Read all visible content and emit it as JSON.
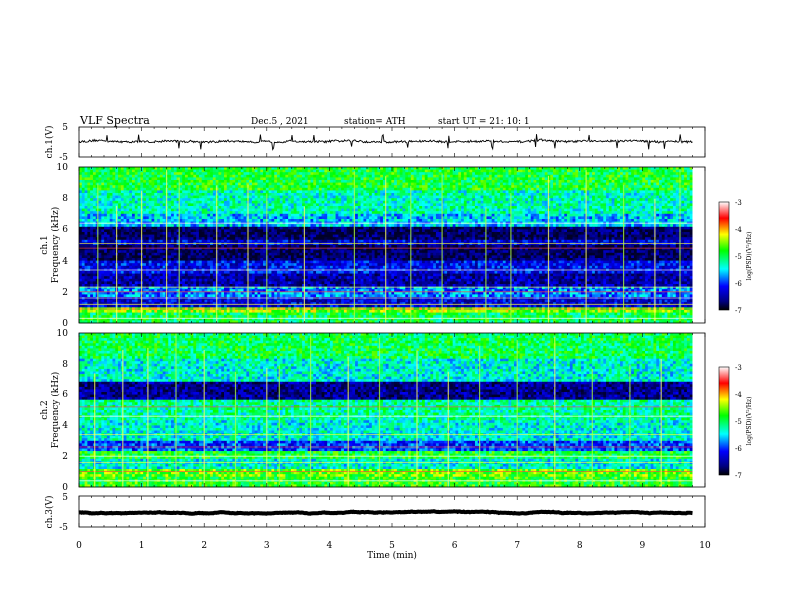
{
  "header": {
    "title": "VLF  Spectra",
    "date": "Dec.5  , 2021",
    "station": "station= ATH",
    "start": "start  UT  =    21: 10: 1"
  },
  "x_axis": {
    "label": "Time  (min)",
    "ticks": [
      "0",
      "1",
      "2",
      "3",
      "4",
      "5",
      "6",
      "7",
      "8",
      "9",
      "10"
    ],
    "range": [
      0,
      10
    ]
  },
  "colorbar": {
    "label": "log(PSD)(V²/Hz)",
    "ticks": [
      "-3",
      "-4",
      "-5",
      "-6",
      "-7"
    ],
    "range": [
      -7,
      -3
    ]
  },
  "chart_data": [
    {
      "type": "line",
      "name": "ch1_waveform",
      "ylabel": "ch.1(V)",
      "ytick_labels": [
        "5",
        "-5"
      ],
      "ylim": [
        -5,
        5
      ],
      "xlim": [
        0,
        9.8
      ],
      "baseline": 0.2,
      "noise": 0.35,
      "spike_times": [
        0.45,
        0.95,
        1.6,
        1.95,
        2.9,
        3.1,
        3.4,
        3.75,
        4.35,
        4.85,
        5.25,
        5.9,
        6.6,
        7.3,
        7.6,
        8.15,
        8.6,
        9.1,
        9.35,
        9.6
      ]
    },
    {
      "type": "heatmap",
      "name": "ch1_spectrogram",
      "ylabel": "Frequency  (kHz)",
      "channel": "ch.1",
      "ytick_labels": [
        "0",
        "2",
        "4",
        "6",
        "8",
        "10"
      ],
      "ylim": [
        0,
        10
      ],
      "xlim": [
        0,
        9.8
      ],
      "zlim": [
        -7,
        -3
      ],
      "bands": [
        {
          "f": [
            0.0,
            0.7
          ],
          "z": -5.0
        },
        {
          "f": [
            0.7,
            1.0
          ],
          "z": -4.5
        },
        {
          "f": [
            1.0,
            1.6
          ],
          "z": -6.3
        },
        {
          "f": [
            1.6,
            2.4
          ],
          "z": -5.8
        },
        {
          "f": [
            2.4,
            3.2
          ],
          "z": -6.5
        },
        {
          "f": [
            3.2,
            4.0
          ],
          "z": -6.2
        },
        {
          "f": [
            4.0,
            5.0
          ],
          "z": -6.8
        },
        {
          "f": [
            5.0,
            5.4
          ],
          "z": -6.3
        },
        {
          "f": [
            5.4,
            6.2
          ],
          "z": -6.8
        },
        {
          "f": [
            6.2,
            7.0
          ],
          "z": -5.6
        },
        {
          "f": [
            7.0,
            8.5
          ],
          "z": -5.3
        },
        {
          "f": [
            8.5,
            10.0
          ],
          "z": -4.9
        }
      ],
      "lines_khz": [
        0.3,
        0.9,
        1.2,
        1.6,
        2.0,
        2.3,
        3.4,
        4.8,
        5.1,
        6.4
      ],
      "burst_times": [
        0.3,
        0.6,
        1.0,
        1.4,
        1.6,
        2.2,
        2.7,
        3.0,
        3.6,
        4.4,
        4.9,
        5.3,
        5.8,
        6.5,
        6.9,
        7.5,
        8.1,
        8.7,
        9.2,
        9.6
      ]
    },
    {
      "type": "heatmap",
      "name": "ch2_spectrogram",
      "ylabel": "Frequency  (kHz)",
      "channel": "ch.2",
      "ytick_labels": [
        "0",
        "2",
        "4",
        "6",
        "8",
        "10"
      ],
      "ylim": [
        0,
        10
      ],
      "xlim": [
        0,
        9.8
      ],
      "zlim": [
        -7,
        -3
      ],
      "bands": [
        {
          "f": [
            0.0,
            0.6
          ],
          "z": -4.8
        },
        {
          "f": [
            0.6,
            1.2
          ],
          "z": -4.6
        },
        {
          "f": [
            1.2,
            1.8
          ],
          "z": -5.4
        },
        {
          "f": [
            1.8,
            2.3
          ],
          "z": -4.9
        },
        {
          "f": [
            2.3,
            3.0
          ],
          "z": -6.0
        },
        {
          "f": [
            3.0,
            4.4
          ],
          "z": -5.4
        },
        {
          "f": [
            4.4,
            5.6
          ],
          "z": -5.2
        },
        {
          "f": [
            5.6,
            6.8
          ],
          "z": -6.6
        },
        {
          "f": [
            6.8,
            8.4
          ],
          "z": -5.4
        },
        {
          "f": [
            8.4,
            10.0
          ],
          "z": -5.0
        }
      ],
      "lines_khz": [
        0.4,
        1.0,
        1.6,
        2.0,
        2.6,
        3.4,
        4.6,
        5.2
      ],
      "burst_times": [
        0.25,
        0.7,
        1.1,
        1.55,
        2.0,
        2.5,
        3.0,
        3.2,
        3.7,
        4.3,
        4.8,
        5.4,
        5.9,
        6.4,
        7.0,
        7.6,
        8.2,
        8.8,
        9.3
      ]
    },
    {
      "type": "line",
      "name": "ch3_waveform",
      "ylabel": "ch.3(V)",
      "ytick_labels": [
        "5",
        "-5"
      ],
      "ylim": [
        -5,
        5
      ],
      "xlim": [
        0,
        9.8
      ],
      "baseline": -0.3,
      "noise": 0.05,
      "spike_times": []
    }
  ]
}
